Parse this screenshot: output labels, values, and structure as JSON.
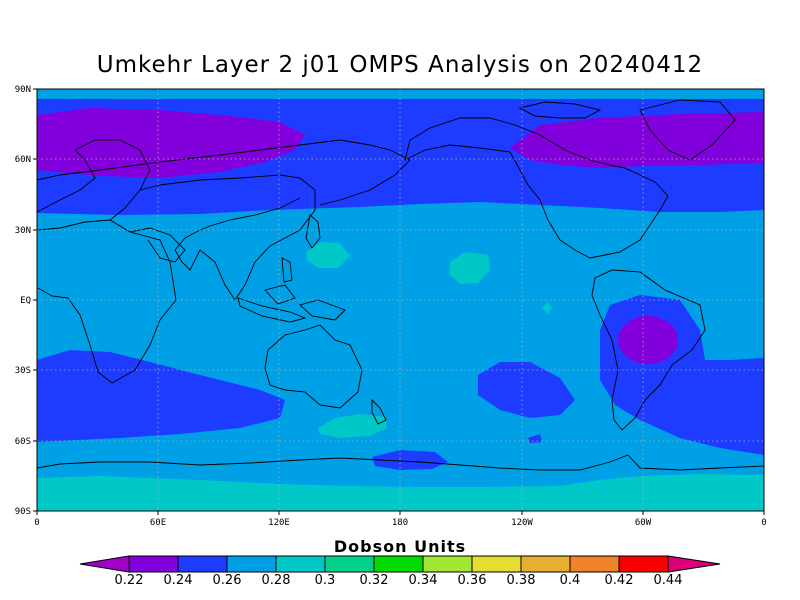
{
  "title": "Umkehr Layer 2 j01 OMPS Analysis on 20240412",
  "map": {
    "lat_ticks": [
      "90N",
      "60N",
      "30N",
      "EQ",
      "30S",
      "60S",
      "90S"
    ],
    "lon_ticks": [
      "0",
      "60E",
      "120E",
      "180",
      "120W",
      "60W",
      "0"
    ],
    "grid": true
  },
  "colorbar": {
    "title": "Dobson Units",
    "labels": [
      "0.22",
      "0.24",
      "0.26",
      "0.28",
      "0.3",
      "0.32",
      "0.34",
      "0.36",
      "0.38",
      "0.4",
      "0.42",
      "0.44"
    ],
    "colors": [
      "#a000c8",
      "#8200dc",
      "#1e3cff",
      "#00a0e6",
      "#00c8c8",
      "#00d28c",
      "#00dc00",
      "#a0e632",
      "#e6dc32",
      "#e6af2d",
      "#f08228",
      "#fa0000",
      "#dc0078"
    ]
  }
}
